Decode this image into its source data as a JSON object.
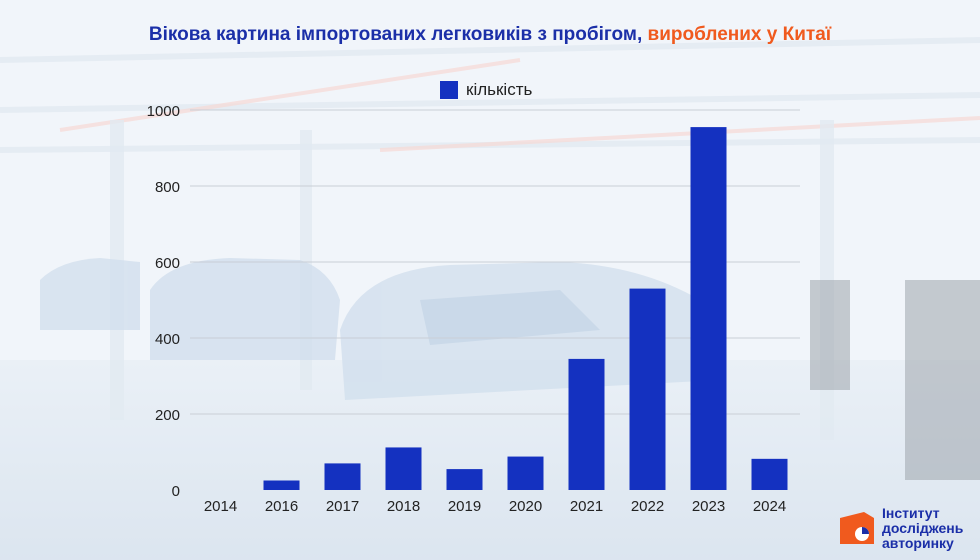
{
  "title": {
    "main": "Вікова картина імпортованих легковиків з пробігом,",
    "accent": "вироблених у Китаї"
  },
  "logo": {
    "line1": "Інститут",
    "line2": "досліджень",
    "line3": "авторинку"
  },
  "colors": {
    "bar": "#1431c0",
    "title": "#1b2fa8",
    "accent": "#f05a1e"
  },
  "chart_data": {
    "type": "bar",
    "categories": [
      "2014",
      "2016",
      "2017",
      "2018",
      "2019",
      "2020",
      "2021",
      "2022",
      "2023",
      "2024"
    ],
    "series": [
      {
        "name": "кількість",
        "values": [
          0,
          25,
          70,
          112,
          55,
          88,
          345,
          530,
          955,
          82
        ]
      }
    ],
    "ylim": [
      0,
      1000
    ],
    "yticks": [
      0,
      200,
      400,
      600,
      800,
      1000
    ],
    "grid": true,
    "legend": "top-center"
  }
}
